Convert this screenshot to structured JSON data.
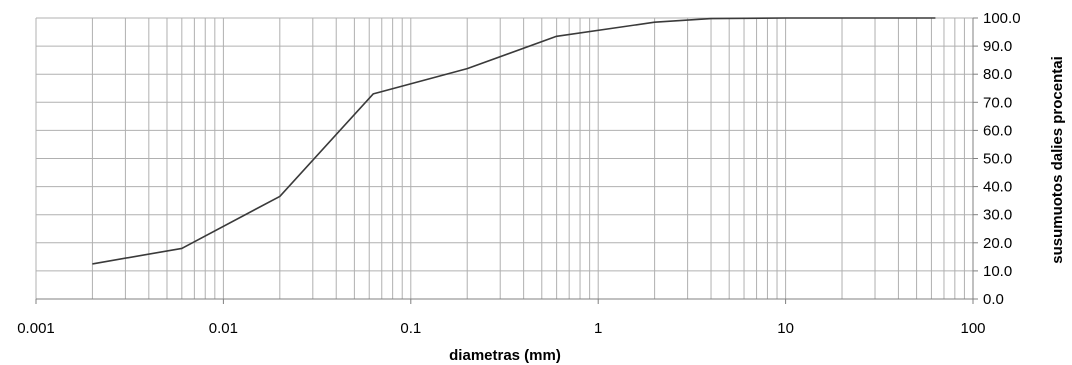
{
  "chart_data": {
    "type": "line",
    "title": "",
    "xlabel": "diametras (mm)",
    "ylabel": "susumuotos dalies procentai",
    "x_scale": "log",
    "xlim": [
      0.001,
      100
    ],
    "ylim": [
      0,
      100
    ],
    "x_tick_labels": [
      "0.001",
      "0.01",
      "0.1",
      "1",
      "10",
      "100"
    ],
    "y_tick_labels": [
      "0.0",
      "10.0",
      "20.0",
      "30.0",
      "40.0",
      "50.0",
      "60.0",
      "70.0",
      "80.0",
      "90.0",
      "100.0"
    ],
    "y_axis_side": "right",
    "grid": true,
    "line_color": "#3a3a3a",
    "grid_color": "#b0b0b0",
    "series": [
      {
        "x": [
          0.002,
          0.006,
          0.02,
          0.063,
          0.2,
          0.6,
          2,
          4,
          10,
          63
        ],
        "y": [
          12.5,
          18,
          36.5,
          73,
          82,
          93.5,
          98.5,
          99.8,
          100,
          100
        ]
      }
    ]
  }
}
